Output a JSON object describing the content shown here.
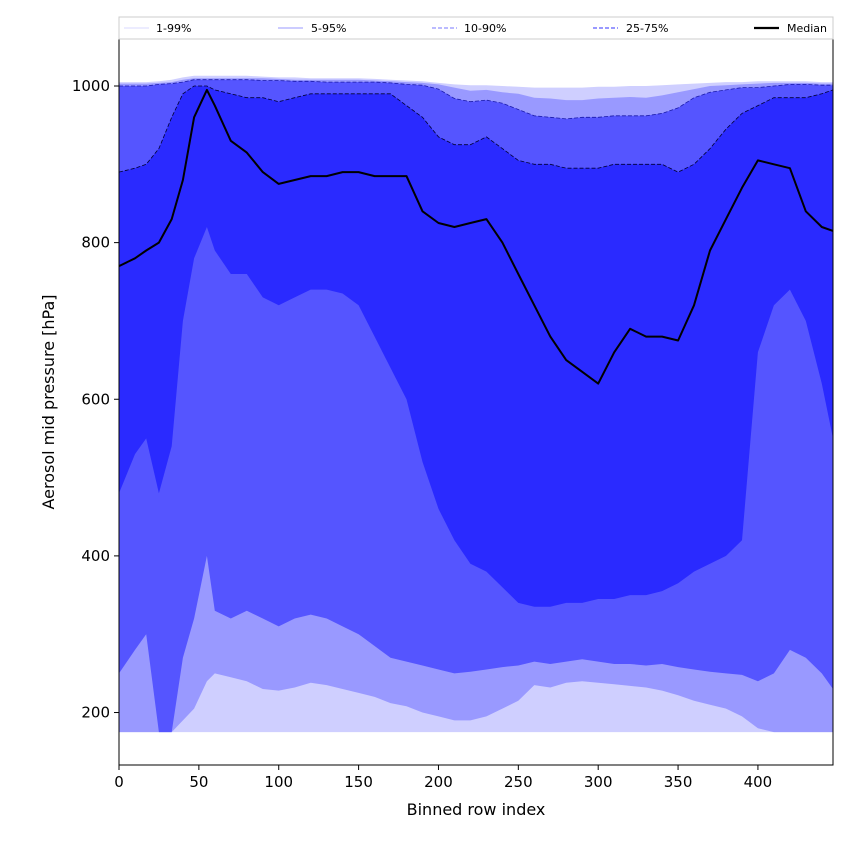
{
  "chart_data": {
    "type": "area",
    "title": "",
    "xlabel": "Binned row index",
    "ylabel": "Aerosol mid pressure [hPa]",
    "xlim": [
      0,
      447
    ],
    "ylim": [
      133,
      1060
    ],
    "xticks": [
      0,
      50,
      100,
      150,
      200,
      250,
      300,
      350,
      400
    ],
    "yticks": [
      200,
      400,
      600,
      800,
      1000
    ],
    "legend": {
      "placement": "top",
      "entries": [
        {
          "label": "1-99%",
          "color": "#d9d9ff",
          "style": "solid"
        },
        {
          "label": "5-95%",
          "color": "#9999ff",
          "style": "solid"
        },
        {
          "label": "10-90%",
          "color": "#7777ff",
          "style": "dashed"
        },
        {
          "label": "25-75%",
          "color": "#3333ff",
          "style": "dashed"
        },
        {
          "label": "Median",
          "color": "#000000",
          "style": "solid"
        }
      ]
    },
    "x": [
      0,
      10,
      17,
      25,
      33,
      40,
      47,
      55,
      60,
      70,
      80,
      90,
      100,
      110,
      120,
      130,
      140,
      150,
      160,
      170,
      180,
      190,
      200,
      210,
      220,
      230,
      240,
      250,
      260,
      270,
      280,
      290,
      300,
      310,
      320,
      330,
      340,
      350,
      360,
      370,
      380,
      390,
      400,
      410,
      420,
      430,
      440,
      447
    ],
    "series": [
      {
        "name": "1-99%",
        "role": "lower",
        "values": [
          175,
          175,
          175,
          175,
          175,
          175,
          175,
          175,
          175,
          175,
          175,
          175,
          175,
          175,
          175,
          175,
          175,
          175,
          175,
          175,
          175,
          175,
          175,
          175,
          175,
          175,
          175,
          175,
          175,
          175,
          175,
          175,
          175,
          175,
          175,
          175,
          175,
          175,
          175,
          175,
          175,
          175,
          175,
          175,
          175,
          175,
          175,
          175
        ]
      },
      {
        "name": "5-95%",
        "role": "lower",
        "values": [
          175,
          175,
          175,
          175,
          175,
          190,
          205,
          240,
          250,
          245,
          240,
          230,
          228,
          232,
          238,
          235,
          230,
          225,
          220,
          212,
          208,
          200,
          195,
          190,
          190,
          195,
          205,
          215,
          235,
          232,
          238,
          240,
          238,
          236,
          234,
          232,
          228,
          222,
          215,
          210,
          205,
          195,
          180,
          175,
          175,
          175,
          175,
          175
        ]
      },
      {
        "name": "10-90%",
        "role": "lower",
        "values": [
          250,
          280,
          300,
          175,
          175,
          270,
          320,
          400,
          330,
          320,
          330,
          320,
          310,
          320,
          325,
          320,
          310,
          300,
          285,
          270,
          265,
          260,
          255,
          250,
          252,
          255,
          258,
          260,
          265,
          262,
          265,
          268,
          265,
          262,
          262,
          260,
          262,
          258,
          255,
          252,
          250,
          248,
          240,
          250,
          280,
          270,
          250,
          230
        ]
      },
      {
        "name": "25-75%",
        "role": "lower",
        "values": [
          480,
          530,
          550,
          480,
          540,
          700,
          780,
          820,
          790,
          760,
          760,
          730,
          720,
          730,
          740,
          740,
          735,
          720,
          680,
          640,
          600,
          520,
          460,
          420,
          390,
          380,
          360,
          340,
          335,
          335,
          340,
          340,
          345,
          345,
          350,
          350,
          355,
          365,
          380,
          390,
          400,
          420,
          660,
          720,
          740,
          700,
          620,
          550
        ]
      },
      {
        "name": "Median",
        "role": "median",
        "values": [
          770,
          780,
          790,
          800,
          830,
          880,
          960,
          995,
          975,
          930,
          915,
          890,
          875,
          880,
          885,
          885,
          890,
          890,
          885,
          885,
          885,
          840,
          825,
          820,
          825,
          830,
          800,
          760,
          720,
          680,
          650,
          635,
          620,
          660,
          690,
          680,
          680,
          675,
          720,
          790,
          830,
          870,
          905,
          900,
          895,
          840,
          820,
          815
        ]
      },
      {
        "name": "25-75%",
        "role": "upper",
        "values": [
          890,
          895,
          900,
          920,
          960,
          990,
          1000,
          1000,
          995,
          990,
          985,
          985,
          980,
          985,
          990,
          990,
          990,
          990,
          990,
          990,
          975,
          960,
          935,
          925,
          925,
          935,
          920,
          905,
          900,
          900,
          895,
          895,
          895,
          900,
          900,
          900,
          900,
          890,
          900,
          920,
          945,
          965,
          975,
          985,
          985,
          985,
          990,
          995
        ]
      },
      {
        "name": "10-90%",
        "role": "upper",
        "values": [
          1000,
          1000,
          1000,
          1002,
          1003,
          1005,
          1008,
          1008,
          1008,
          1008,
          1008,
          1007,
          1007,
          1006,
          1006,
          1005,
          1005,
          1005,
          1005,
          1004,
          1002,
          1001,
          996,
          984,
          980,
          982,
          978,
          970,
          962,
          960,
          958,
          960,
          960,
          962,
          962,
          962,
          965,
          972,
          985,
          992,
          995,
          998,
          998,
          1000,
          1002,
          1002,
          1001,
          1001
        ]
      },
      {
        "name": "5-95%",
        "role": "upper",
        "values": [
          1003,
          1003,
          1003,
          1004,
          1005,
          1008,
          1010,
          1010,
          1010,
          1010,
          1010,
          1010,
          1009,
          1008,
          1008,
          1008,
          1008,
          1008,
          1007,
          1006,
          1005,
          1004,
          1002,
          998,
          994,
          995,
          992,
          990,
          985,
          984,
          982,
          982,
          984,
          985,
          986,
          985,
          988,
          992,
          996,
          1000,
          1001,
          1002,
          1003,
          1004,
          1004,
          1004,
          1003,
          1003
        ]
      },
      {
        "name": "1-99%",
        "role": "upper",
        "values": [
          1005,
          1005,
          1005,
          1006,
          1008,
          1011,
          1013,
          1013,
          1013,
          1013,
          1013,
          1012,
          1011,
          1011,
          1010,
          1010,
          1010,
          1010,
          1009,
          1008,
          1007,
          1006,
          1004,
          1002,
          1001,
          1001,
          1000,
          999,
          998,
          998,
          998,
          998,
          999,
          999,
          1000,
          1000,
          1001,
          1002,
          1003,
          1004,
          1005,
          1005,
          1006,
          1006,
          1006,
          1006,
          1005,
          1005
        ]
      }
    ],
    "colors": {
      "band_1_99": "#cfcfff",
      "band_5_95": "#9999ff",
      "band_10_90": "#5555ff",
      "band_25_75": "#2a2aff",
      "median": "#000000"
    },
    "grid": false
  }
}
